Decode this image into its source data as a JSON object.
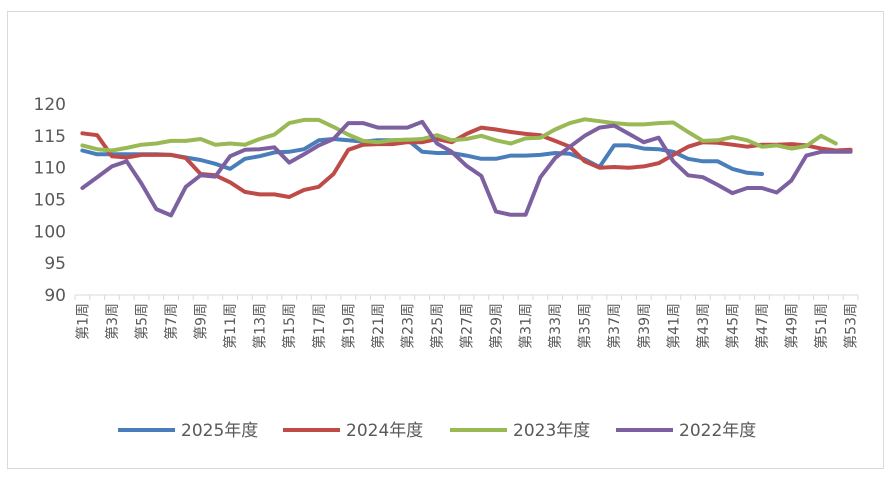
{
  "chart_data": {
    "type": "line",
    "title": "",
    "xlabel": "",
    "ylabel": "",
    "ylim": [
      90,
      120
    ],
    "yticks": [
      90,
      95,
      100,
      105,
      110,
      115,
      120
    ],
    "grid": false,
    "legend_position": "bottom",
    "categories": [
      "第1周",
      "第2周",
      "第3周",
      "第4周",
      "第5周",
      "第6周",
      "第7周",
      "第8周",
      "第9周",
      "第10周",
      "第11周",
      "第12周",
      "第13周",
      "第14周",
      "第15周",
      "第16周",
      "第17周",
      "第18周",
      "第19周",
      "第20周",
      "第21周",
      "第22周",
      "第23周",
      "第24周",
      "第25周",
      "第26周",
      "第27周",
      "第28周",
      "第29周",
      "第30周",
      "第31周",
      "第32周",
      "第33周",
      "第34周",
      "第35周",
      "第36周",
      "第37周",
      "第38周",
      "第39周",
      "第40周",
      "第41周",
      "第42周",
      "第43周",
      "第44周",
      "第45周",
      "第46周",
      "第47周",
      "第48周",
      "第49周",
      "第50周",
      "第51周",
      "第52周",
      "第53周"
    ],
    "x_tick_labels": [
      "第1周",
      "第3周",
      "第5周",
      "第7周",
      "第9周",
      "第11周",
      "第13周",
      "第15周",
      "第17周",
      "第19周",
      "第21周",
      "第23周",
      "第25周",
      "第27周",
      "第29周",
      "第31周",
      "第33周",
      "第35周",
      "第37周",
      "第39周",
      "第41周",
      "第43周",
      "第45周",
      "第47周",
      "第49周",
      "第51周",
      "第53周"
    ],
    "series": [
      {
        "name": "2025年度",
        "color": "#4a7ebb",
        "values": [
          112.7,
          112.1,
          112.1,
          112.1,
          112.1,
          112.1,
          112.0,
          111.6,
          111.2,
          110.6,
          109.8,
          111.4,
          111.8,
          112.4,
          112.5,
          112.9,
          114.3,
          114.5,
          114.3,
          114.1,
          114.3,
          114.3,
          114.4,
          112.5,
          112.3,
          112.3,
          111.9,
          111.4,
          111.4,
          111.9,
          111.9,
          112.0,
          112.3,
          112.2,
          111.3,
          110.1,
          113.5,
          113.5,
          113.0,
          112.9,
          112.5,
          111.4,
          111.0,
          111.0,
          109.8,
          109.2,
          109.0,
          null,
          null,
          null,
          null,
          null,
          null
        ]
      },
      {
        "name": "2024年度",
        "color": "#be4b48",
        "values": [
          115.4,
          115.1,
          111.8,
          111.6,
          112.0,
          112.0,
          112.0,
          111.5,
          109.0,
          108.8,
          107.7,
          106.2,
          105.8,
          105.8,
          105.4,
          106.5,
          107.0,
          109.0,
          112.8,
          113.6,
          113.7,
          113.7,
          114.0,
          114.0,
          114.5,
          114.0,
          115.3,
          116.3,
          116.0,
          115.6,
          115.3,
          115.1,
          114.2,
          113.3,
          111.0,
          110.0,
          110.1,
          110.0,
          110.2,
          110.7,
          112.0,
          113.3,
          114.0,
          113.9,
          113.6,
          113.3,
          113.6,
          113.6,
          113.7,
          113.5,
          113.0,
          112.7,
          112.8
        ]
      },
      {
        "name": "2023年度",
        "color": "#98b954",
        "values": [
          113.5,
          112.9,
          112.7,
          113.1,
          113.6,
          113.8,
          114.2,
          114.2,
          114.5,
          113.6,
          113.8,
          113.6,
          114.5,
          115.2,
          117.0,
          117.5,
          117.5,
          116.4,
          115.2,
          114.2,
          114.0,
          114.3,
          114.4,
          114.5,
          115.1,
          114.3,
          114.5,
          115.0,
          114.3,
          113.8,
          114.6,
          114.7,
          116.0,
          117.0,
          117.6,
          117.3,
          117.0,
          116.8,
          116.8,
          117.0,
          117.1,
          115.6,
          114.2,
          114.3,
          114.8,
          114.3,
          113.3,
          113.5,
          113.0,
          113.4,
          115.0,
          113.8,
          null
        ]
      },
      {
        "name": "2022年度",
        "color": "#7d60a0",
        "values": [
          106.8,
          108.5,
          110.2,
          111.0,
          107.5,
          103.5,
          102.5,
          107.0,
          108.8,
          108.6,
          111.8,
          112.8,
          112.9,
          113.2,
          110.8,
          112.1,
          113.5,
          114.5,
          117.0,
          117.0,
          116.3,
          116.3,
          116.3,
          117.2,
          113.8,
          112.5,
          110.3,
          108.7,
          103.1,
          102.6,
          102.6,
          108.5,
          111.5,
          113.3,
          115.0,
          116.3,
          116.6,
          115.3,
          114.0,
          114.7,
          111.0,
          108.8,
          108.5,
          107.3,
          106.0,
          106.8,
          106.8,
          106.1,
          108.0,
          111.9,
          112.5,
          112.5,
          112.5
        ]
      }
    ]
  }
}
